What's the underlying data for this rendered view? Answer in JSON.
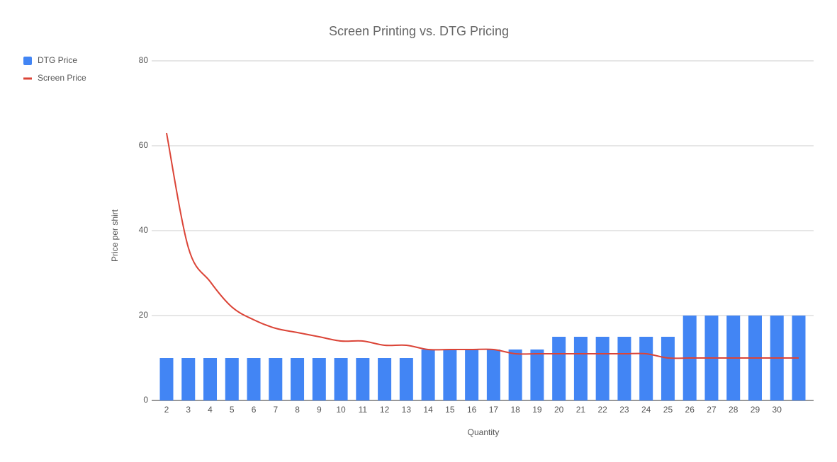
{
  "chart_data": {
    "type": "combo",
    "title": "Screen Printing vs. DTG Pricing",
    "x_label": "Quantity",
    "y_label": "Price per shirt",
    "categories": [
      "2",
      "3",
      "4",
      "5",
      "6",
      "7",
      "8",
      "9",
      "10",
      "11",
      "12",
      "13",
      "14",
      "15",
      "16",
      "17",
      "18",
      "19",
      "20",
      "21",
      "22",
      "23",
      "24",
      "25",
      "26",
      "27",
      "28",
      "29",
      "30",
      null
    ],
    "series": [
      {
        "name": "DTG Price",
        "type": "bar",
        "color": "#4285f4",
        "values": [
          10,
          10,
          10,
          10,
          10,
          10,
          10,
          10,
          10,
          10,
          10,
          10,
          12,
          12,
          12,
          12,
          12,
          12,
          15,
          15,
          15,
          15,
          15,
          15,
          20,
          20,
          20,
          20,
          20,
          20
        ]
      },
      {
        "name": "Screen Price",
        "type": "line",
        "color": "#db4437",
        "values": [
          63,
          36,
          28,
          22,
          19,
          17,
          16,
          15,
          14,
          14,
          13,
          13,
          12,
          12,
          12,
          12,
          11,
          11,
          11,
          11,
          11,
          11,
          11,
          10,
          10,
          10,
          10,
          10,
          10,
          10
        ]
      }
    ],
    "ylim": [
      0,
      80
    ],
    "yticks": [
      0,
      20,
      40,
      60,
      80
    ],
    "grid": true,
    "legend": "left"
  }
}
